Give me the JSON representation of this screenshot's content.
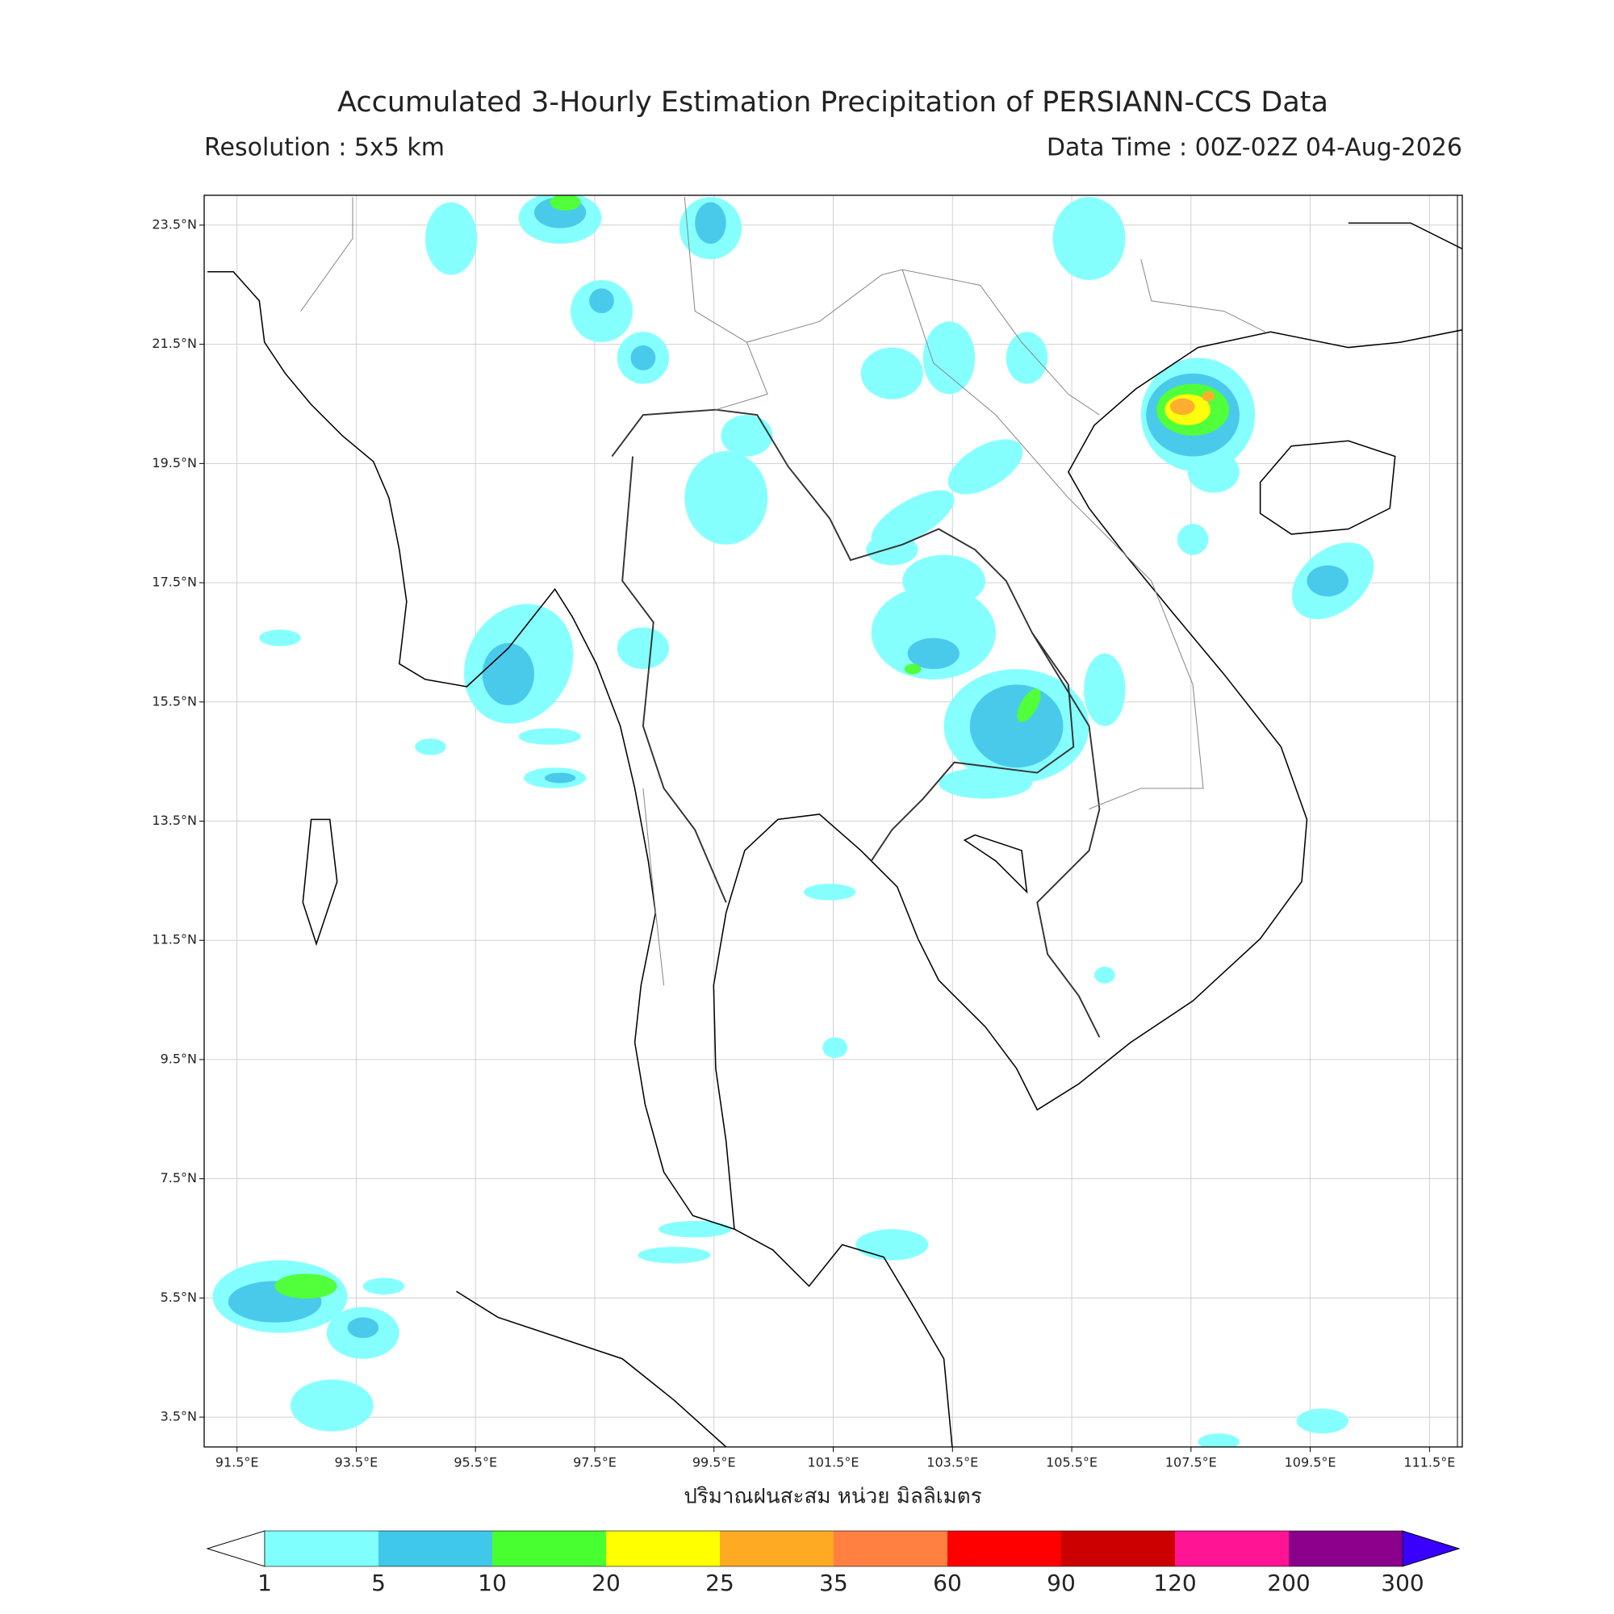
{
  "header": {
    "title": "Accumulated 3-Hourly Estimation Precipitation of PERSIANN-CCS Data",
    "resolution": "Resolution : 5x5 km",
    "data_time": "Data Time : 00Z-02Z 04-Aug-2026"
  },
  "map": {
    "xlim": [
      90.95,
      112.05
    ],
    "ylim": [
      3,
      24
    ],
    "grid": true,
    "xticks": [
      {
        "value": 91.5,
        "label": "91.5°E"
      },
      {
        "value": 93.5,
        "label": "93.5°E"
      },
      {
        "value": 95.5,
        "label": "95.5°E"
      },
      {
        "value": 97.5,
        "label": "97.5°E"
      },
      {
        "value": 99.5,
        "label": "99.5°E"
      },
      {
        "value": 101.5,
        "label": "101.5°E"
      },
      {
        "value": 103.5,
        "label": "103.5°E"
      },
      {
        "value": 105.5,
        "label": "105.5°E"
      },
      {
        "value": 107.5,
        "label": "107.5°E"
      },
      {
        "value": 109.5,
        "label": "109.5°E"
      },
      {
        "value": 111.5,
        "label": "111.5°E"
      }
    ],
    "yticks": [
      {
        "value": 3.5,
        "label": "3.5°N"
      },
      {
        "value": 5.5,
        "label": "5.5°N"
      },
      {
        "value": 7.5,
        "label": "7.5°N"
      },
      {
        "value": 9.5,
        "label": "9.5°N"
      },
      {
        "value": 11.5,
        "label": "11.5°N"
      },
      {
        "value": 13.5,
        "label": "13.5°N"
      },
      {
        "value": 15.5,
        "label": "15.5°N"
      },
      {
        "value": 17.5,
        "label": "17.5°N"
      },
      {
        "value": 19.5,
        "label": "19.5°N"
      },
      {
        "value": 21.5,
        "label": "21.5°N"
      },
      {
        "value": 23.5,
        "label": "23.5°N"
      }
    ],
    "xlabel": "ปริมาณฝนสะสม หน่วย มิลลิเมตร"
  },
  "colorbar": {
    "levels": [
      1,
      5,
      10,
      20,
      25,
      35,
      60,
      90,
      120,
      200,
      300
    ],
    "colors": [
      "#80ffff",
      "#40c8ea",
      "#48ff30",
      "#ffff00",
      "#ffaa22",
      "#ff8040",
      "#ff0000",
      "#cc0000",
      "#ff1493",
      "#8b008b"
    ],
    "under_color": "#ffffff",
    "over_color": "#3a00ff"
  }
}
